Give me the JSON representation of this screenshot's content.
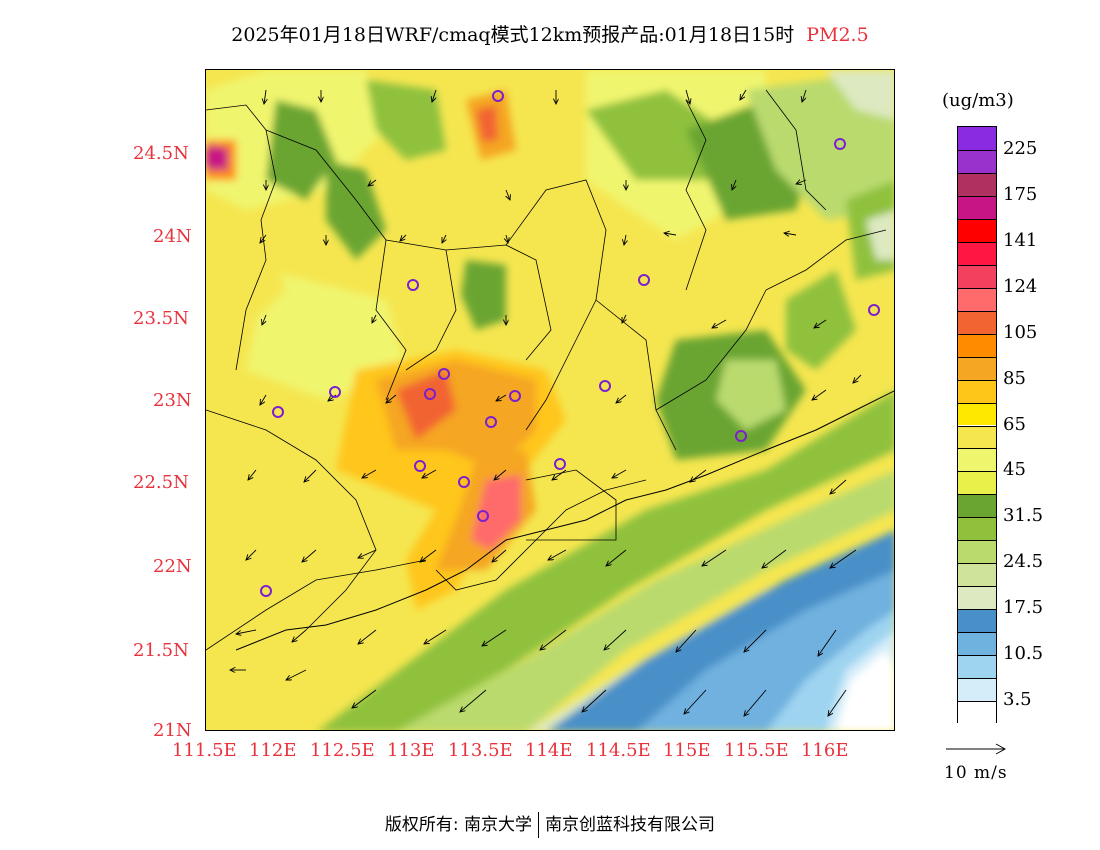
{
  "title": {
    "main": "2025年01月18日WRF/cmaq模式12km预报产品:01月18日15时",
    "species": "PM2.5"
  },
  "axes": {
    "lat_labels": [
      "24.5N",
      "24N",
      "23.5N",
      "23N",
      "22.5N",
      "22N",
      "21.5N",
      "21N"
    ],
    "lon_labels": [
      "111.5E",
      "112E",
      "112.5E",
      "113E",
      "113.5E",
      "114E",
      "114.5E",
      "115E",
      "115.5E",
      "116E"
    ]
  },
  "colorbar": {
    "units": "(ug/m3)",
    "labels": [
      "225",
      "175",
      "141",
      "124",
      "105",
      "85",
      "65",
      "45",
      "31.5",
      "24.5",
      "17.5",
      "10.5",
      "3.5"
    ],
    "colors": [
      "#8a2be2",
      "#9932cc",
      "#b03060",
      "#c71585",
      "#ff0000",
      "#ff1744",
      "#f4405f",
      "#ff6a6a",
      "#f26430",
      "#ff8c00",
      "#f5a623",
      "#ffc61a",
      "#ffe800",
      "#f5e650",
      "#f0f56e",
      "#eaf04a",
      "#6aa532",
      "#8fc13d",
      "#bada6e",
      "#cfe49a",
      "#dde9c0",
      "#4a90c8",
      "#6fb1df",
      "#9fd4f0",
      "#d4edf9",
      "#ffffff"
    ]
  },
  "wind_reference": {
    "label": "10 m/s"
  },
  "footer": {
    "left": "版权所有: 南京大学",
    "right": "南京创蓝科技有限公司"
  },
  "stations_icon": "station-circle-icon",
  "wind_icon": "wind-arrow-icon"
}
